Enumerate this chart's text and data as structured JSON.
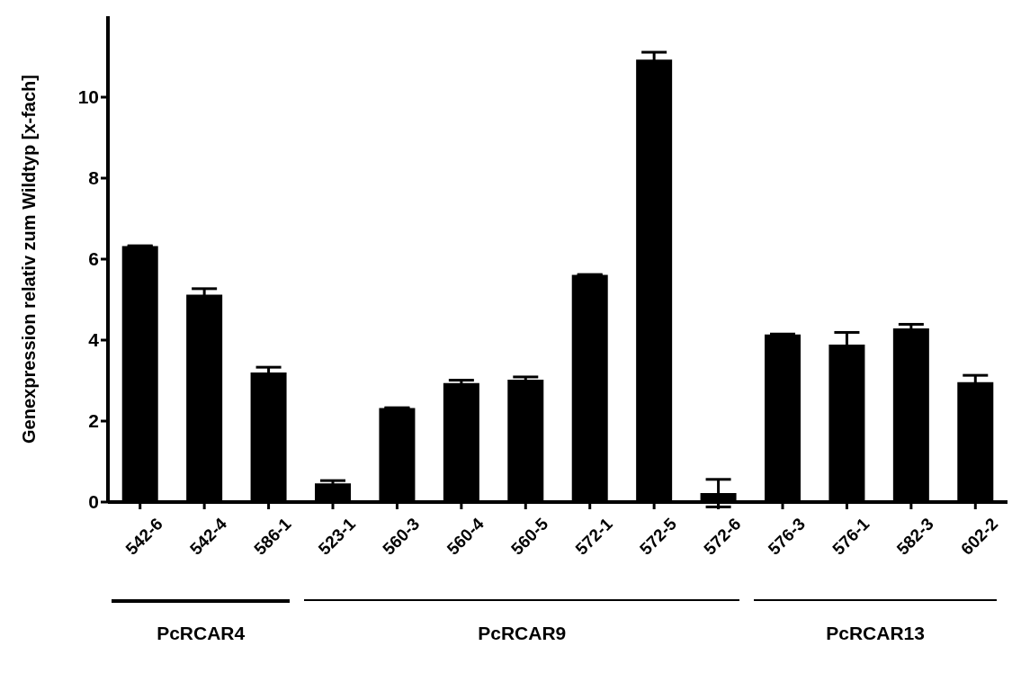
{
  "chart_data": {
    "type": "bar",
    "ylabel": "Genexpression relativ zum Wildtyp [x-fach]",
    "categories": [
      "542-6",
      "542-4",
      "586-1",
      "523-1",
      "560-3",
      "560-4",
      "560-5",
      "572-1",
      "572-5",
      "572-6",
      "576-3",
      "576-1",
      "582-3",
      "602-2"
    ],
    "values": [
      6.32,
      5.12,
      3.2,
      0.46,
      2.32,
      2.94,
      3.02,
      5.61,
      10.93,
      0.22,
      4.14,
      3.89,
      4.29,
      2.96
    ],
    "errors": [
      0.01,
      0.15,
      0.13,
      0.07,
      0.01,
      0.07,
      0.07,
      0.01,
      0.18,
      0.34,
      0.01,
      0.3,
      0.1,
      0.17
    ],
    "color": "#000000",
    "ylim": [
      0,
      12
    ],
    "yticks": [
      0,
      2,
      4,
      6,
      8,
      10
    ],
    "grid": false,
    "legend": false,
    "annotations": [
      "PcRCAR4",
      "PcRCAR9",
      "PcRCAR13"
    ]
  }
}
